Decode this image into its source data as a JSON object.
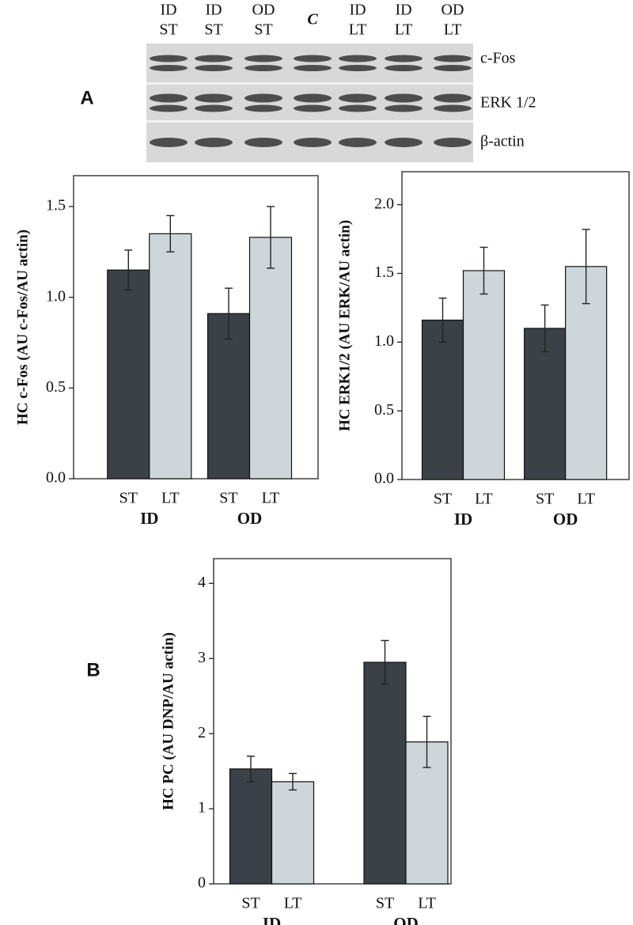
{
  "panels": {
    "a": "A",
    "b": "B"
  },
  "blot": {
    "lanes": [
      [
        "ID",
        "ST"
      ],
      [
        "ID",
        "ST"
      ],
      [
        "OD",
        "ST"
      ],
      [
        "C"
      ],
      [
        "ID",
        "LT"
      ],
      [
        "ID",
        "LT"
      ],
      [
        "OD",
        "LT"
      ]
    ],
    "proteins": [
      "c-Fos",
      "ERK 1/2",
      "β-actin"
    ]
  },
  "chart_data": [
    {
      "type": "bar",
      "y_label": "HC c-Fos (AU c-Fos/AU actin)",
      "categories": [
        "ID",
        "OD"
      ],
      "series": [
        {
          "name": "ST",
          "color": "#3b4147",
          "values": [
            1.15,
            0.91
          ],
          "errors": [
            0.11,
            0.14
          ]
        },
        {
          "name": "LT",
          "color": "#ced6da",
          "values": [
            1.35,
            1.33
          ],
          "errors": [
            0.1,
            0.17
          ]
        }
      ],
      "ylim": [
        0,
        1.67
      ],
      "yticks": [
        {
          "value": 0,
          "label": "0.0"
        },
        0.5,
        {
          "value": 1,
          "label": "1.0"
        },
        1.5
      ]
    },
    {
      "type": "bar",
      "y_label": "HC ERK1/2 (AU ERK/AU actin)",
      "categories": [
        "ID",
        "OD"
      ],
      "series": [
        {
          "name": "ST",
          "color": "#3b4147",
          "values": [
            1.16,
            1.1
          ],
          "errors": [
            0.16,
            0.17
          ]
        },
        {
          "name": "LT",
          "color": "#ced6da",
          "values": [
            1.52,
            1.55
          ],
          "errors": [
            0.17,
            0.27
          ]
        }
      ],
      "ylim": [
        0,
        2.24
      ],
      "yticks": [
        {
          "value": 0,
          "label": "0.0"
        },
        0.5,
        {
          "value": 1,
          "label": "1.0"
        },
        1.5,
        {
          "value": 2,
          "label": "2.0"
        }
      ]
    },
    {
      "type": "bar",
      "y_label": "HC PC (AU DNP/AU actin)",
      "categories": [
        "ID",
        "OD"
      ],
      "series": [
        {
          "name": "ST",
          "color": "#3b4147",
          "values": [
            1.53,
            2.95
          ],
          "errors": [
            0.17,
            0.29
          ]
        },
        {
          "name": "LT",
          "color": "#ced6da",
          "values": [
            1.36,
            1.89
          ],
          "errors": [
            0.11,
            0.34
          ]
        }
      ],
      "ylim": [
        0,
        4.33
      ],
      "yticks": [
        0,
        1,
        2,
        3,
        4
      ]
    }
  ]
}
